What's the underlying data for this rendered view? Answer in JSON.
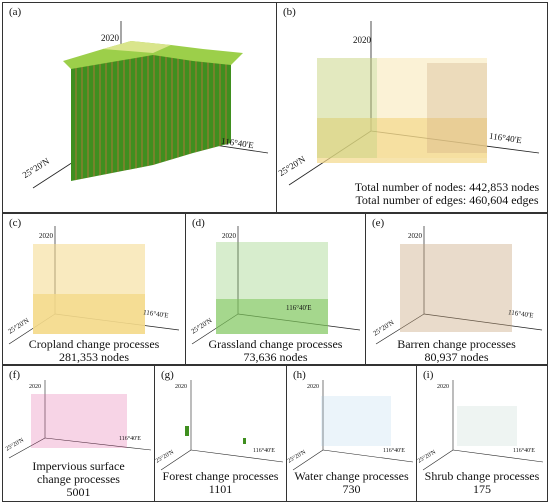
{
  "panels": {
    "a": {
      "label": "(a)",
      "year": "2020",
      "lat": "25°20'N",
      "lon": "116°40'E"
    },
    "b": {
      "label": "(b)",
      "year": "2020",
      "lat": "25°20'N",
      "lon": "116°40'E",
      "nodes_text": "Total number of nodes: 442,853 nodes",
      "edges_text": "Total number of edges: 460,604 edges"
    },
    "c": {
      "label": "(c)",
      "year": "2020",
      "lat": "25°20'N",
      "lon": "116°40'E",
      "title": "Cropland change processes",
      "count": "281,353 nodes"
    },
    "d": {
      "label": "(d)",
      "year": "2020",
      "lat": "25°20'N",
      "lon": "116°40'E",
      "title": "Grassland change processes",
      "count": "73,636 nodes"
    },
    "e": {
      "label": "(e)",
      "year": "2020",
      "lat": "25°20'N",
      "lon": "116°40'E",
      "title": "Barren change processes",
      "count": "80,937 nodes"
    },
    "f": {
      "label": "(f)",
      "year": "2020",
      "lat": "25°20'N",
      "lon": "116°40'E",
      "title_line1": "Impervious surface",
      "title_line2": "change processes",
      "count": "5001"
    },
    "g": {
      "label": "(g)",
      "year": "2020",
      "lat": "25°20'N",
      "lon": "116°40'E",
      "title": "Forest change processes",
      "count": "1101"
    },
    "h": {
      "label": "(h)",
      "year": "2020",
      "lat": "25°20'N",
      "lon": "116°40'E",
      "title": "Water change processes",
      "count": "730"
    },
    "i": {
      "label": "(i)",
      "year": "2020",
      "lat": "25°20'N",
      "lon": "116°40'E",
      "title": "Shrub change processes",
      "count": "175"
    }
  },
  "colors": {
    "forest": "#3f8f1f",
    "forest_top": "#9ccf4a",
    "trunk": "#a37a35",
    "cropland": "#f4d98a",
    "grassland": "#7cc45a",
    "barren": "#c9a57e",
    "impervious": "#e0559a",
    "water": "#9cc9e8",
    "shrub": "#8fb3a8"
  }
}
